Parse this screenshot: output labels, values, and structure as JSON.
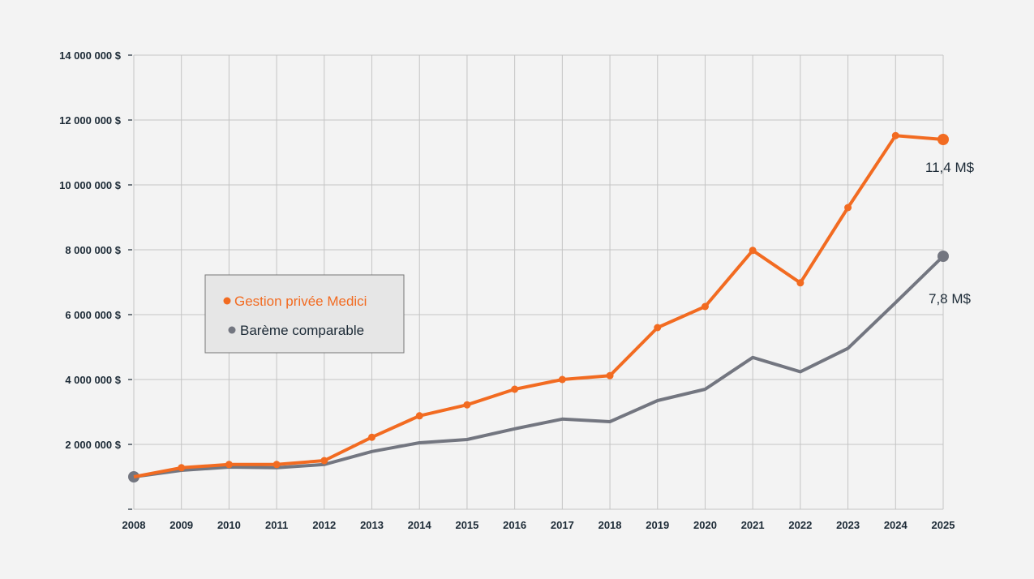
{
  "chart_data": {
    "type": "line",
    "title": "",
    "xlabel": "",
    "ylabel": "",
    "x": [
      2008,
      2009,
      2010,
      2011,
      2012,
      2013,
      2014,
      2015,
      2016,
      2017,
      2018,
      2019,
      2020,
      2021,
      2022,
      2023,
      2024,
      2025
    ],
    "ylim": [
      0,
      14000000
    ],
    "yticks": [
      0,
      2000000,
      4000000,
      6000000,
      8000000,
      10000000,
      12000000,
      14000000
    ],
    "ytick_labels": [
      "",
      "2 000 000 $",
      "4 000 000 $",
      "6 000 000 $",
      "8 000 000 $",
      "10 000 000 $",
      "12 000 000 $",
      "14 000 000 $"
    ],
    "grid": true,
    "legend_placement": "center-left",
    "series": [
      {
        "name": "Gestion privée Medici",
        "color": "#f26b21",
        "markers": true,
        "values": [
          1000000,
          1280000,
          1380000,
          1380000,
          1500000,
          2220000,
          2880000,
          3220000,
          3700000,
          4000000,
          4120000,
          5600000,
          6250000,
          7980000,
          6980000,
          9300000,
          11520000,
          11400000
        ],
        "end_label": "11,4 M$"
      },
      {
        "name": "Barème comparable",
        "color": "#737680",
        "markers": false,
        "values": [
          1000000,
          1200000,
          1300000,
          1280000,
          1380000,
          1780000,
          2050000,
          2150000,
          2480000,
          2780000,
          2700000,
          3350000,
          3700000,
          4680000,
          4240000,
          4960000,
          6370000,
          7800000
        ],
        "end_label": "7,8 M$"
      }
    ]
  }
}
